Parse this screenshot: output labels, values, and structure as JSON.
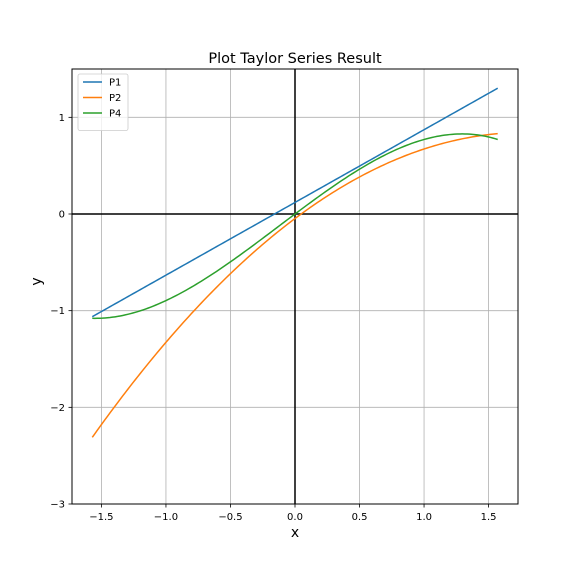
{
  "chart_data": {
    "type": "line",
    "title": "Plot Taylor Series Result",
    "xlabel": "x",
    "ylabel": "y",
    "xlim": [
      -1.728,
      1.728
    ],
    "ylim": [
      -3.0,
      1.5
    ],
    "xticks": [
      -1.5,
      -1.0,
      -0.5,
      0.0,
      0.5,
      1.0,
      1.5
    ],
    "xtick_labels": [
      "−1.5",
      "−1.0",
      "−0.5",
      "0.0",
      "0.5",
      "1.0",
      "1.5"
    ],
    "yticks": [
      -3,
      -2,
      -1,
      0,
      1
    ],
    "ytick_labels": [
      "−3",
      "−2",
      "−1",
      "0",
      "1"
    ],
    "grid": true,
    "legend_position": "top-left",
    "x_range": [
      -1.5708,
      1.5708
    ],
    "series": [
      {
        "name": "P1",
        "color": "#1f77b4",
        "coeffs": [
          0.1196,
          0.7524
        ]
      },
      {
        "name": "P2",
        "color": "#ff7f0e",
        "coeffs": [
          -0.0468,
          1.0,
          -0.2807
        ]
      },
      {
        "name": "P4",
        "color": "#2ca02c",
        "coeffs": [
          0.0,
          1.0,
          -0.0624,
          -0.1667,
          0.0
        ]
      }
    ]
  }
}
